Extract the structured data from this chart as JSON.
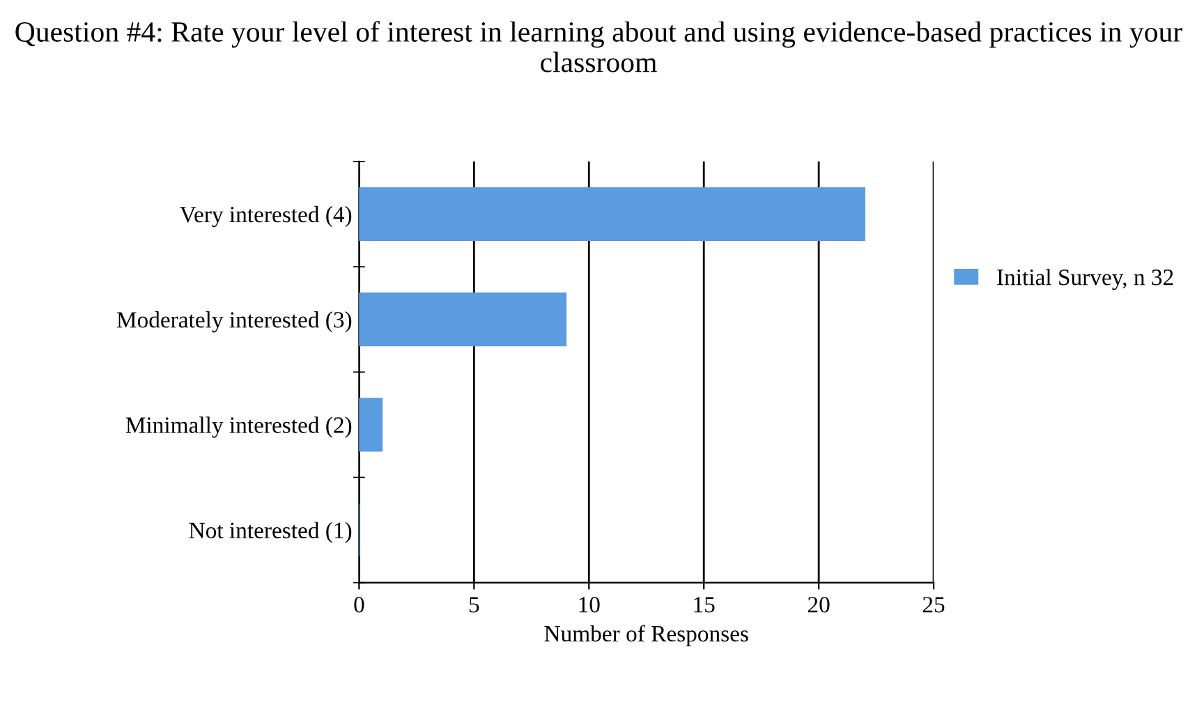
{
  "chart_data": {
    "type": "bar",
    "orientation": "horizontal",
    "title": "Question #4: Rate your level of interest in learning about and using evidence-based practices in your classroom",
    "xlabel": "Number of Responses",
    "categories": [
      "Very interested (4)",
      "Moderately interested (3)",
      "Minimally interested (2)",
      "Not interested (1)"
    ],
    "series": [
      {
        "name": "Initial Survey, n 32",
        "color": "#5b9be0",
        "values": [
          22,
          9,
          1,
          0
        ]
      }
    ],
    "xlim": [
      0,
      25
    ],
    "xticks": [
      0,
      5,
      10,
      15,
      20,
      25
    ],
    "grid": "x",
    "legend": "right"
  }
}
